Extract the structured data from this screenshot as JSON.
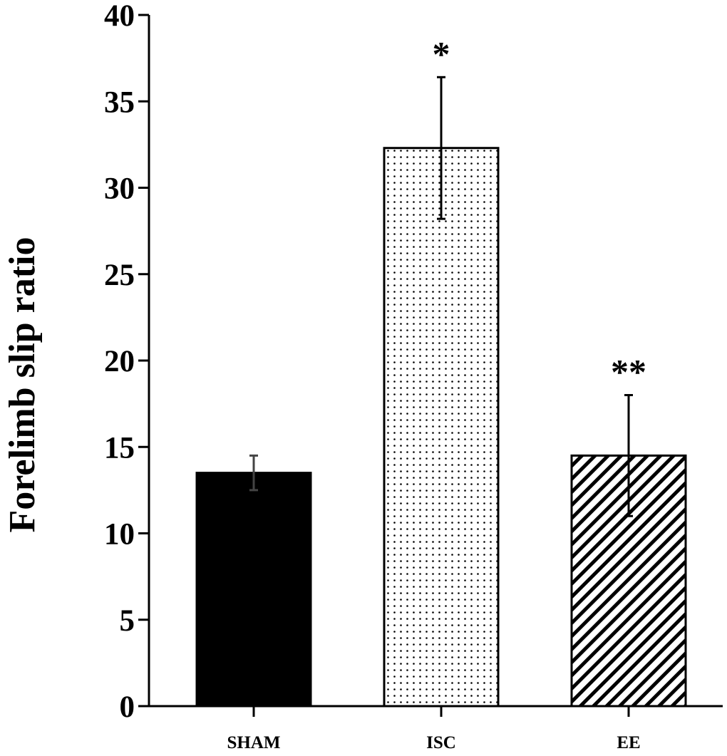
{
  "chart_data": {
    "type": "bar",
    "title": "",
    "xlabel": "",
    "ylabel": "Forelimb slip ratio",
    "ylim": [
      0,
      40
    ],
    "yticks": [
      "0",
      "5",
      "10",
      "15",
      "20",
      "25",
      "30",
      "35",
      "40"
    ],
    "categories": [
      "SHAM",
      "ISC",
      "EE"
    ],
    "values": [
      13.5,
      32.3,
      14.5
    ],
    "errors": [
      1.0,
      4.1,
      3.5
    ],
    "annotations": [
      "",
      "*",
      "**"
    ],
    "fills": [
      "solid-black",
      "dotted",
      "hatched"
    ],
    "grid": false,
    "legend": "none"
  }
}
